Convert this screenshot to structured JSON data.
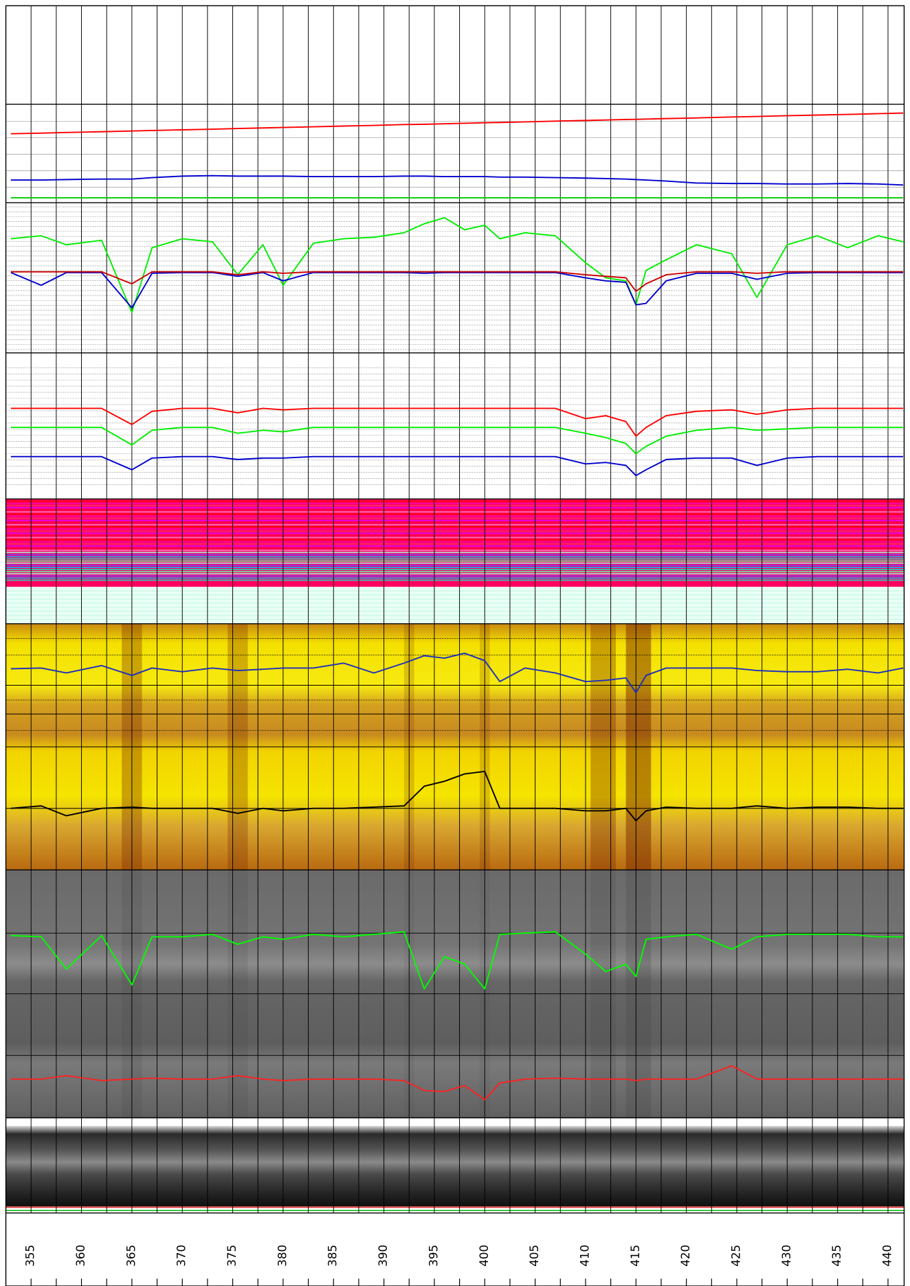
{
  "chart_data": {
    "type": "log",
    "xlim": [
      352.5,
      441.6
    ],
    "xticks": [
      355,
      360,
      365,
      370,
      375,
      380,
      385,
      390,
      395,
      400,
      405,
      410,
      415,
      420,
      425,
      430,
      435,
      440
    ],
    "xminorticks": [
      357.5,
      362.5,
      367.5,
      372.5,
      377.5,
      382.5,
      387.5,
      392.5,
      397.5,
      402.5,
      407.5,
      412.5,
      417.5,
      422.5,
      427.5,
      432.5,
      437.5
    ],
    "ylim": [
      0,
      100
    ],
    "x": [
      353,
      356,
      358.5,
      362,
      365,
      367,
      370,
      373,
      375.5,
      378,
      380,
      383,
      386,
      389,
      392,
      394,
      396,
      398,
      400,
      401.5,
      404,
      407,
      410,
      412,
      414,
      415,
      416,
      418,
      421,
      424.5,
      427,
      430,
      433,
      436,
      439,
      441.5
    ],
    "tracks": [
      {
        "series": [
          {
            "color": "#ff0000",
            "values": [
              70,
              70.7,
              71.3,
              72.1,
              72.8,
              73.3,
              74,
              74.7,
              75.3,
              75.9,
              76.4,
              77.1,
              77.8,
              78.5,
              79.3,
              79.7,
              80.2,
              80.7,
              81.2,
              81.5,
              82.1,
              82.8,
              83.5,
              84,
              84.5,
              84.7,
              84.9,
              85.4,
              86.1,
              87,
              87.6,
              88.3,
              89,
              89.7,
              90.4,
              91
            ]
          },
          {
            "color": "#0000cc",
            "values": [
              23,
              23,
              23.5,
              24,
              24,
              25.5,
              27,
              27.5,
              27,
              27,
              27,
              26.5,
              26.5,
              26.5,
              27,
              27,
              26.5,
              26.5,
              26.5,
              26,
              26,
              25.5,
              25,
              24.5,
              24,
              23.5,
              23,
              22,
              20,
              19.5,
              19.5,
              19,
              19,
              19.5,
              19,
              18
            ]
          },
          {
            "color": "#00cc00",
            "values": [
              5,
              5,
              5,
              5,
              5,
              5,
              5,
              5,
              5,
              5,
              5,
              5,
              5,
              5,
              5,
              5,
              5,
              5,
              5,
              5,
              5,
              5,
              5,
              5,
              5,
              5,
              5,
              5,
              5,
              5,
              5,
              5,
              5,
              5,
              5,
              5
            ]
          }
        ]
      },
      {
        "series": [
          {
            "color": "#00ee00",
            "values": [
              76,
              78,
              72,
              75,
              27,
              70,
              76,
              74,
              52,
              72,
              45,
              73,
              76,
              77,
              80,
              86,
              90,
              82,
              85,
              76,
              80,
              78,
              60,
              50,
              48,
              32,
              55,
              62,
              72,
              66,
              37,
              72,
              78,
              70,
              78,
              74
            ]
          },
          {
            "color": "#0000cc",
            "values": [
              53.5,
              45,
              53.5,
              53.5,
              30,
              53,
              53.5,
              53.5,
              51,
              53.5,
              48,
              53.5,
              53.5,
              53.5,
              53.5,
              53,
              53.5,
              53.5,
              53.5,
              53.5,
              53.5,
              53.5,
              50,
              48,
              47,
              32,
              33,
              48,
              53,
              53,
              49,
              53,
              53.5,
              53.5,
              53.5,
              53.5
            ]
          },
          {
            "color": "#cc0000",
            "values": [
              54,
              54,
              54,
              54,
              46,
              54,
              54,
              54,
              52,
              54,
              53,
              54,
              54,
              54,
              54,
              54,
              54,
              54,
              54,
              54,
              54,
              54,
              52,
              51,
              50,
              41,
              46,
              52,
              54,
              54,
              53,
              54,
              54,
              54,
              54,
              54
            ]
          }
        ]
      },
      {
        "series": [
          {
            "color": "#ff0000",
            "values": [
              62,
              62,
              62,
              62,
              51,
              60,
              62,
              62,
              59,
              62,
              61,
              62,
              62,
              62,
              62,
              62,
              62,
              62,
              62,
              62,
              62,
              62,
              55,
              57,
              53,
              43,
              49,
              57,
              60,
              61,
              58,
              61,
              62,
              62,
              62,
              62
            ]
          },
          {
            "color": "#00ee00",
            "values": [
              49,
              49,
              49,
              49,
              37,
              47,
              49,
              49,
              45,
              47,
              46,
              49,
              49,
              49,
              49,
              49,
              49,
              49,
              49,
              49,
              49,
              49,
              45,
              42,
              38,
              31,
              36,
              43,
              47,
              49,
              47,
              48,
              49,
              49,
              49,
              49
            ]
          },
          {
            "color": "#0000cc",
            "values": [
              29,
              29,
              29,
              29,
              20,
              28,
              29,
              29,
              27,
              28,
              28,
              29,
              29,
              29,
              29,
              29,
              29,
              29,
              29,
              29,
              29,
              29,
              24,
              25,
              23,
              16,
              20,
              27,
              28,
              28,
              23,
              28,
              29,
              29,
              29,
              29
            ]
          }
        ]
      },
      {
        "series": [
          {
            "color": "#1a2fc0",
            "values": [
              81.7,
              82,
              80,
              83,
              79,
              82,
              80.5,
              82,
              81,
              81.5,
              82,
              82,
              84,
              80,
              84,
              87,
              86,
              88,
              85,
              76.5,
              82,
              80,
              76.5,
              77,
              78,
              72,
              79,
              82,
              82,
              82,
              81,
              80.5,
              80.5,
              81.5,
              80,
              82
            ]
          },
          {
            "color": "#000000",
            "values": [
              25,
              26,
              22,
              25,
              25.5,
              25,
              25,
              25,
              23,
              25,
              24,
              25,
              25,
              25.5,
              26,
              34,
              36,
              39,
              40,
              25,
              25,
              25,
              24,
              24,
              25,
              20,
              24,
              25.5,
              25,
              25,
              26,
              25,
              25.5,
              25.5,
              25,
              25
            ]
          }
        ]
      },
      {
        "series": [
          {
            "color": "#00ff00",
            "values": [
              73.5,
              73,
              60,
              73.5,
              53.6,
              73,
              73,
              74,
              70,
              73,
              72,
              74,
              73,
              74,
              75,
              52,
              65,
              62,
              52,
              74,
              74.5,
              75,
              66,
              59,
              62,
              57,
              72,
              73,
              74,
              68,
              73,
              74,
              74,
              74,
              73,
              73
            ]
          },
          {
            "color": "#ff2020",
            "values": [
              15.6,
              15.6,
              17,
              15,
              15.6,
              16,
              15.6,
              15.6,
              17,
              15.6,
              15,
              15.6,
              15.6,
              15.6,
              15,
              11,
              10.6,
              13,
              7.3,
              14,
              15.6,
              16,
              15.6,
              15.6,
              15.6,
              15,
              15.6,
              15.6,
              15.6,
              21,
              15.6,
              15.6,
              15.6,
              15.6,
              15.6,
              15.6
            ]
          }
        ]
      }
    ]
  }
}
